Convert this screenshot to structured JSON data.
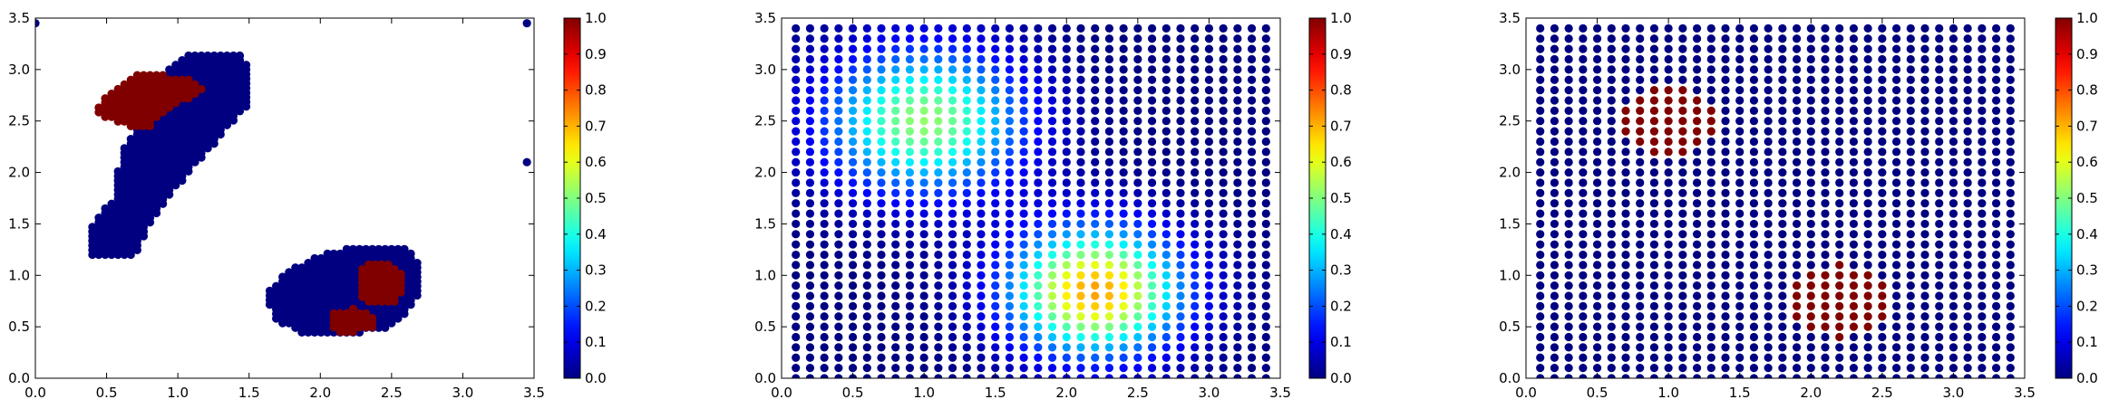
{
  "chart_data": [
    {
      "type": "scatter",
      "title": "",
      "xlabel": "",
      "ylabel": "",
      "xlim": [
        0,
        3.5
      ],
      "ylim": [
        0,
        3.5
      ],
      "xticks": [
        "0.0",
        "0.5",
        "1.0",
        "1.5",
        "2.0",
        "2.5",
        "3.0",
        "3.5"
      ],
      "yticks": [
        "0.0",
        "0.5",
        "1.0",
        "1.5",
        "2.0",
        "2.5",
        "3.0",
        "3.5"
      ],
      "colormap": "jet",
      "colorbar": {
        "range": [
          0,
          1
        ],
        "ticks": [
          "0.0",
          "0.1",
          "0.2",
          "0.3",
          "0.4",
          "0.5",
          "0.6",
          "0.7",
          "0.8",
          "0.9",
          "1.0"
        ]
      },
      "regions": [
        {
          "name": "upper-left-low",
          "value": 0.0,
          "polygon": [
            [
              0.4,
              1.2
            ],
            [
              0.4,
              1.5
            ],
            [
              0.55,
              1.75
            ],
            [
              0.6,
              2.2
            ],
            [
              0.75,
              2.55
            ],
            [
              0.9,
              2.95
            ],
            [
              1.05,
              3.15
            ],
            [
              1.45,
              3.15
            ],
            [
              1.52,
              2.95
            ],
            [
              1.5,
              2.65
            ],
            [
              1.3,
              2.35
            ],
            [
              1.05,
              1.95
            ],
            [
              0.85,
              1.6
            ],
            [
              0.7,
              1.2
            ]
          ]
        },
        {
          "name": "upper-left-high",
          "value": 1.0,
          "polygon": [
            [
              0.4,
              2.6
            ],
            [
              0.48,
              2.72
            ],
            [
              0.62,
              2.85
            ],
            [
              0.72,
              2.95
            ],
            [
              0.9,
              2.95
            ],
            [
              1.1,
              2.92
            ],
            [
              1.2,
              2.8
            ],
            [
              1.05,
              2.7
            ],
            [
              0.9,
              2.58
            ],
            [
              0.82,
              2.45
            ],
            [
              0.65,
              2.45
            ],
            [
              0.5,
              2.52
            ]
          ]
        },
        {
          "name": "lower-right-low",
          "value": 0.0,
          "polygon": [
            [
              1.6,
              0.8
            ],
            [
              1.68,
              0.58
            ],
            [
              1.85,
              0.44
            ],
            [
              2.15,
              0.4
            ],
            [
              2.45,
              0.48
            ],
            [
              2.62,
              0.65
            ],
            [
              2.7,
              0.85
            ],
            [
              2.7,
              1.12
            ],
            [
              2.6,
              1.28
            ],
            [
              2.35,
              1.3
            ],
            [
              2.05,
              1.22
            ],
            [
              1.8,
              1.08
            ]
          ]
        },
        {
          "name": "lower-right-high-1",
          "value": 1.0,
          "polygon": [
            [
              2.25,
              0.95
            ],
            [
              2.3,
              1.1
            ],
            [
              2.45,
              1.15
            ],
            [
              2.55,
              1.08
            ],
            [
              2.6,
              0.9
            ],
            [
              2.55,
              0.75
            ],
            [
              2.38,
              0.7
            ],
            [
              2.27,
              0.78
            ]
          ]
        },
        {
          "name": "lower-right-high-2",
          "value": 1.0,
          "polygon": [
            [
              2.05,
              0.55
            ],
            [
              2.1,
              0.65
            ],
            [
              2.25,
              0.68
            ],
            [
              2.38,
              0.6
            ],
            [
              2.38,
              0.5
            ],
            [
              2.25,
              0.45
            ],
            [
              2.12,
              0.45
            ]
          ]
        }
      ],
      "outlier_points": [
        {
          "x": 0.0,
          "y": 3.45,
          "value": 0.0
        },
        {
          "x": 3.45,
          "y": 3.45,
          "value": 0.0
        },
        {
          "x": 3.45,
          "y": 2.1,
          "value": 0.0
        }
      ]
    },
    {
      "type": "scatter",
      "title": "",
      "xlabel": "",
      "ylabel": "",
      "xlim": [
        0,
        3.5
      ],
      "ylim": [
        0,
        3.5
      ],
      "xticks": [
        "0.0",
        "0.5",
        "1.0",
        "1.5",
        "2.0",
        "2.5",
        "3.0",
        "3.5"
      ],
      "yticks": [
        "0.0",
        "0.5",
        "1.0",
        "1.5",
        "2.0",
        "2.5",
        "3.0",
        "3.5"
      ],
      "colormap": "jet",
      "colorbar": {
        "range": [
          0,
          1
        ],
        "ticks": [
          "0.0",
          "0.1",
          "0.2",
          "0.3",
          "0.4",
          "0.5",
          "0.6",
          "0.7",
          "0.8",
          "0.9",
          "1.0"
        ]
      },
      "grid_points": {
        "x_start": 0.1,
        "x_step": 0.1,
        "x_count": 34,
        "y_start": 0.0,
        "y_step": 0.1,
        "y_count": 35
      },
      "field": {
        "kind": "sum_of_gaussians",
        "components": [
          {
            "center": [
              1.0,
              2.5
            ],
            "sigma": 0.48,
            "amplitude": 0.52
          },
          {
            "center": [
              2.2,
              0.85
            ],
            "sigma": 0.42,
            "amplitude": 0.72
          }
        ]
      }
    },
    {
      "type": "scatter",
      "title": "",
      "xlabel": "",
      "ylabel": "",
      "xlim": [
        0,
        3.5
      ],
      "ylim": [
        0,
        3.5
      ],
      "xticks": [
        "0.0",
        "0.5",
        "1.0",
        "1.5",
        "2.0",
        "2.5",
        "3.0",
        "3.5"
      ],
      "yticks": [
        "0.0",
        "0.5",
        "1.0",
        "1.5",
        "2.0",
        "2.5",
        "3.0",
        "3.5"
      ],
      "colormap": "jet",
      "colorbar": {
        "range": [
          0,
          1
        ],
        "ticks": [
          "0.0",
          "0.1",
          "0.2",
          "0.3",
          "0.4",
          "0.5",
          "0.6",
          "0.7",
          "0.8",
          "0.9",
          "1.0"
        ]
      },
      "grid_points": {
        "x_start": 0.1,
        "x_step": 0.1,
        "x_count": 34,
        "y_start": 0.0,
        "y_step": 0.1,
        "y_count": 35
      },
      "high_regions": [
        {
          "center": [
            1.0,
            2.5
          ],
          "radius": 0.32,
          "value": 1.0
        },
        {
          "center": [
            2.2,
            0.75
          ],
          "radius": 0.36,
          "value": 1.0
        }
      ]
    }
  ]
}
